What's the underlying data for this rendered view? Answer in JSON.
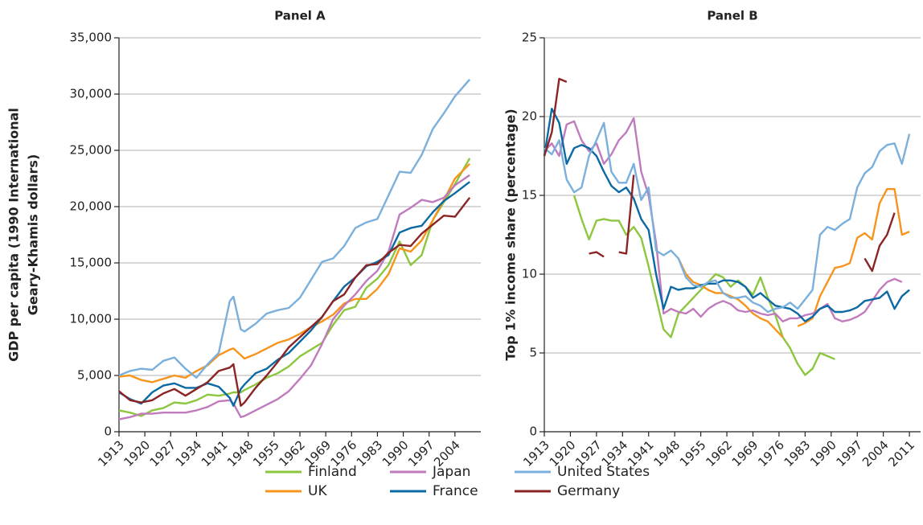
{
  "chart_data": [
    {
      "type": "line",
      "title": "Panel A",
      "ylabel": [
        "GDP per capita (1990 International",
        "Geary-Khamis dollars)"
      ],
      "x": [
        1913,
        1916,
        1919,
        1922,
        1925,
        1928,
        1931,
        1934,
        1937,
        1940,
        1943,
        1944,
        1946,
        1947,
        1950,
        1953,
        1956,
        1959,
        1962,
        1965,
        1968,
        1971,
        1974,
        1977,
        1980,
        1983,
        1986,
        1989,
        1992,
        1995,
        1998,
        2001,
        2004,
        2008
      ],
      "xlim": [
        1913,
        2011
      ],
      "xticks": [
        1913,
        1920,
        1927,
        1934,
        1941,
        1948,
        1955,
        1962,
        1969,
        1976,
        1983,
        1990,
        1997,
        2004
      ],
      "ylim": [
        0,
        35000
      ],
      "yticks": [
        0,
        {
          "value": 5000,
          "label": "5,000"
        },
        {
          "value": 10000,
          "label": "10,000"
        },
        {
          "value": 15000,
          "label": "15,000"
        },
        {
          "value": 20000,
          "label": "20,000"
        },
        {
          "value": 25000,
          "label": "25,000"
        },
        {
          "value": 30000,
          "label": "30,000"
        },
        {
          "value": 35000,
          "label": "35,000"
        }
      ],
      "grid": true,
      "series": [
        {
          "name": "Finland",
          "color": "#8dc63f",
          "values": [
            1900,
            1700,
            1400,
            1900,
            2100,
            2600,
            2500,
            2800,
            3300,
            3200,
            3400,
            3500,
            3500,
            3700,
            4200,
            4800,
            5200,
            5800,
            6700,
            7300,
            7900,
            9500,
            10800,
            11100,
            12800,
            13600,
            14800,
            16900,
            14800,
            15700,
            18800,
            20400,
            22000,
            24300
          ]
        },
        {
          "name": "UK",
          "color": "#f7941d",
          "values": [
            4900,
            5000,
            4600,
            4400,
            4700,
            5000,
            4800,
            5400,
            5900,
            6800,
            7300,
            7400,
            6800,
            6500,
            6900,
            7400,
            7900,
            8200,
            8700,
            9300,
            9800,
            10400,
            11400,
            11800,
            11800,
            12700,
            14000,
            16300,
            16000,
            17000,
            18800,
            20600,
            22500,
            23800
          ]
        },
        {
          "name": "Japan",
          "color": "#c07bbd",
          "values": [
            1100,
            1300,
            1600,
            1600,
            1700,
            1700,
            1700,
            1900,
            2200,
            2700,
            2800,
            2500,
            1300,
            1400,
            1900,
            2400,
            2900,
            3600,
            4700,
            5900,
            7800,
            10000,
            11200,
            12200,
            13400,
            14300,
            16000,
            19300,
            19900,
            20600,
            20400,
            20800,
            21900,
            22800
          ]
        },
        {
          "name": "France",
          "color": "#0b6aa3",
          "values": [
            3500,
            2900,
            2500,
            3500,
            4100,
            4300,
            3900,
            3900,
            4300,
            4000,
            3000,
            2300,
            3800,
            4200,
            5200,
            5600,
            6400,
            7000,
            8000,
            9000,
            10200,
            11600,
            12900,
            13700,
            14700,
            15100,
            15700,
            17700,
            18100,
            18300,
            19500,
            20500,
            21200,
            22200
          ]
        },
        {
          "name": "United States",
          "color": "#7bb0dc",
          "values": [
            5000,
            5400,
            5600,
            5500,
            6300,
            6600,
            5600,
            4800,
            6000,
            7000,
            11600,
            12000,
            9100,
            8900,
            9600,
            10500,
            10800,
            11000,
            11900,
            13500,
            15100,
            15400,
            16500,
            18100,
            18600,
            18900,
            21000,
            23100,
            23000,
            24600,
            26900,
            28300,
            29800,
            31300
          ]
        },
        {
          "name": "Germany",
          "color": "#8b2525",
          "values": [
            3600,
            2800,
            2600,
            2800,
            3400,
            3800,
            3200,
            3800,
            4400,
            5400,
            5700,
            6000,
            2300,
            2600,
            3900,
            5000,
            6200,
            7500,
            8400,
            9300,
            10200,
            11600,
            12200,
            13700,
            14800,
            14900,
            15900,
            16600,
            16500,
            17600,
            18400,
            19200,
            19100,
            20800
          ]
        }
      ]
    },
    {
      "type": "line",
      "title": "Panel B",
      "ylabel": [
        "Top 1% income share (percentage)"
      ],
      "x": [
        1913,
        1915,
        1917,
        1919,
        1921,
        1923,
        1925,
        1927,
        1929,
        1931,
        1933,
        1935,
        1937,
        1939,
        1941,
        1943,
        1945,
        1947,
        1949,
        1951,
        1953,
        1955,
        1957,
        1959,
        1961,
        1963,
        1965,
        1967,
        1969,
        1971,
        1973,
        1975,
        1977,
        1979,
        1981,
        1983,
        1985,
        1987,
        1989,
        1991,
        1993,
        1995,
        1997,
        1999,
        2001,
        2003,
        2005,
        2007,
        2009,
        2011
      ],
      "xlim": [
        1913,
        2014
      ],
      "xticks": [
        1913,
        1920,
        1927,
        1934,
        1941,
        1948,
        1955,
        1962,
        1969,
        1976,
        1983,
        1990,
        1997,
        2004,
        2011
      ],
      "ylim": [
        0,
        25
      ],
      "yticks": [
        0,
        5,
        10,
        15,
        20,
        25
      ],
      "grid": true,
      "series": [
        {
          "color": "#8dc63f",
          "values": [
            null,
            null,
            null,
            null,
            15,
            13.5,
            12.2,
            13.4,
            13.5,
            13.4,
            13.4,
            12.5,
            13,
            12.3,
            10.5,
            8.5,
            6.5,
            6,
            7.5,
            8,
            8.5,
            9,
            9.5,
            10,
            9.8,
            9.2,
            9.6,
            9.2,
            8.7,
            9.8,
            8.5,
            7.4,
            6,
            5.3,
            4.3,
            3.6,
            4,
            5,
            4.8,
            4.6,
            null,
            null,
            null,
            null,
            null,
            null,
            null,
            null,
            null,
            null
          ]
        },
        {
          "color": "#f7941d",
          "values": [
            null,
            null,
            null,
            null,
            null,
            null,
            null,
            null,
            null,
            null,
            null,
            null,
            null,
            null,
            null,
            null,
            null,
            null,
            11,
            10,
            9.5,
            9.3,
            9,
            8.8,
            8.8,
            8.6,
            8.4,
            8,
            7.5,
            7.2,
            7,
            6.5,
            6,
            null,
            6.7,
            6.9,
            7.2,
            8.6,
            9.5,
            10.4,
            10.5,
            10.7,
            12.3,
            12.6,
            12.2,
            14.5,
            15.4,
            15.4,
            12.5,
            12.7
          ]
        },
        {
          "color": "#c07bbd",
          "values": [
            17.8,
            18.3,
            17.5,
            19.5,
            19.7,
            18.5,
            17.8,
            18.3,
            17,
            17.6,
            18.5,
            19,
            19.9,
            16.5,
            15,
            12,
            7.5,
            7.8,
            7.6,
            7.5,
            7.8,
            7.3,
            7.8,
            8.1,
            8.3,
            8.1,
            7.7,
            7.6,
            7.7,
            7.5,
            7.4,
            7.5,
            7,
            7.2,
            7.2,
            7.4,
            7.5,
            7.8,
            8.1,
            7.2,
            7,
            7.1,
            7.3,
            7.6,
            8.3,
            9,
            9.5,
            9.7,
            9.5,
            null
          ]
        },
        {
          "color": "#0b6aa3",
          "values": [
            17.5,
            20.5,
            19.6,
            17,
            18,
            18.2,
            18,
            17.5,
            16.5,
            15.6,
            15.2,
            15.5,
            14.8,
            13.5,
            12.8,
            10,
            7.8,
            9.2,
            9,
            9.1,
            9.1,
            9.3,
            9.4,
            9.4,
            9.6,
            9.6,
            9.5,
            9.2,
            8.5,
            8.8,
            8.4,
            8,
            7.9,
            7.8,
            7.5,
            7,
            7.3,
            7.8,
            8,
            7.6,
            7.6,
            7.7,
            7.9,
            8.3,
            8.4,
            8.5,
            8.9,
            7.8,
            8.6,
            9
          ]
        },
        {
          "color": "#7bb0dc",
          "values": [
            18,
            17.6,
            18.5,
            16,
            15.2,
            15.5,
            17.5,
            18.5,
            19.6,
            16.5,
            15.8,
            15.8,
            17,
            14.7,
            15.5,
            11.5,
            11.2,
            11.5,
            11,
            9.8,
            9.3,
            9.2,
            9.5,
            9.6,
            8.8,
            8.5,
            8.5,
            8.6,
            8.2,
            8,
            7.6,
            7.8,
            7.9,
            8.2,
            7.8,
            8.4,
            9,
            12.5,
            13,
            12.8,
            13.2,
            13.5,
            15.5,
            16.4,
            16.8,
            17.8,
            18.2,
            18.3,
            17,
            18.9
          ]
        },
        {
          "color": "#8b2525",
          "values": [
            17.5,
            19,
            22.4,
            22.2,
            null,
            null,
            11.3,
            11.4,
            11.1,
            null,
            11.4,
            11.3,
            16.3,
            null,
            null,
            null,
            null,
            null,
            null,
            null,
            null,
            null,
            null,
            null,
            null,
            null,
            null,
            null,
            null,
            null,
            null,
            null,
            null,
            null,
            null,
            null,
            null,
            null,
            null,
            null,
            null,
            null,
            null,
            11,
            10.2,
            11.8,
            12.5,
            13.9,
            null,
            null
          ]
        }
      ]
    }
  ]
}
